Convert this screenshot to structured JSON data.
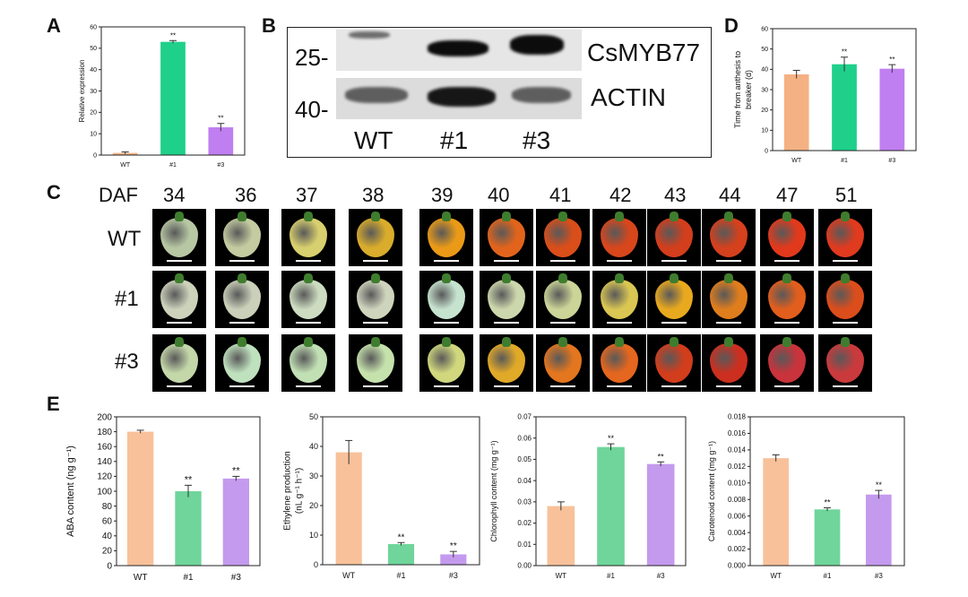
{
  "panels": {
    "a": "A",
    "b": "B",
    "c": "C",
    "d": "D",
    "e": "E"
  },
  "charts": {
    "A": {
      "type": "bar",
      "categories": [
        "WT",
        "#1",
        "#3"
      ],
      "values": [
        1.0,
        53.0,
        13.0
      ],
      "errors": [
        0.5,
        0.6,
        1.8
      ],
      "stars": [
        "",
        "**",
        "**"
      ],
      "colors": [
        "#f4b183",
        "#1fd08a",
        "#c07ff0"
      ],
      "ylabel": "Relative expression",
      "ylim": [
        0,
        60
      ],
      "yticks": [
        "0",
        "10",
        "20",
        "30",
        "40",
        "50",
        "60"
      ]
    },
    "D": {
      "type": "bar",
      "categories": [
        "WT",
        "#1",
        "#3"
      ],
      "values": [
        37.5,
        42.5,
        40.3
      ],
      "errors": [
        2.0,
        3.5,
        2.0
      ],
      "stars": [
        "",
        "**",
        "**"
      ],
      "colors": [
        "#f4b183",
        "#1fd08a",
        "#c07ff0"
      ],
      "ylabel_lines": [
        "Time from anthesis to",
        "breaker (d)"
      ],
      "ylim": [
        0,
        60
      ],
      "yticks": [
        "0",
        "10",
        "20",
        "30",
        "40",
        "50",
        "60"
      ]
    },
    "E1": {
      "type": "bar",
      "categories": [
        "WT",
        "#1",
        "#3"
      ],
      "values": [
        180,
        100,
        117
      ],
      "errors": [
        2,
        8,
        3
      ],
      "stars": [
        "",
        "**",
        "**"
      ],
      "colors": [
        "#f8c19a",
        "#6fd59b",
        "#c49aee"
      ],
      "ylabel": "ABA content (ng g⁻¹)",
      "ylim": [
        0,
        200
      ],
      "yticks": [
        "0",
        "20",
        "40",
        "60",
        "80",
        "100",
        "120",
        "140",
        "160",
        "180",
        "200"
      ]
    },
    "E2": {
      "type": "bar",
      "categories": [
        "WT",
        "#1",
        "#3"
      ],
      "values": [
        38,
        7,
        3.5
      ],
      "errors": [
        4,
        0.5,
        1
      ],
      "stars": [
        "",
        "**",
        "**"
      ],
      "colors": [
        "#f8c19a",
        "#6fd59b",
        "#c49aee"
      ],
      "ylabel_lines": [
        "Ethylene production",
        "(nL g⁻¹ h⁻¹)"
      ],
      "ylim": [
        0,
        50
      ],
      "yticks": [
        "0",
        "10",
        "20",
        "30",
        "40",
        "50"
      ]
    },
    "E3": {
      "type": "bar",
      "categories": [
        "WT",
        "#1",
        "#3"
      ],
      "values": [
        0.028,
        0.0558,
        0.0478
      ],
      "errors": [
        0.002,
        0.0015,
        0.001
      ],
      "stars": [
        "",
        "**",
        "**"
      ],
      "colors": [
        "#f8c19a",
        "#6fd59b",
        "#c49aee"
      ],
      "ylabel": "Chlorophyll content (mg g⁻¹)",
      "ylim": [
        0,
        0.07
      ],
      "yticks": [
        "0.00",
        "0.01",
        "0.02",
        "0.03",
        "0.04",
        "0.05",
        "0.06",
        "0.07"
      ]
    },
    "E4": {
      "type": "bar",
      "categories": [
        "WT",
        "#1",
        "#3"
      ],
      "values": [
        0.013,
        0.0068,
        0.0086
      ],
      "errors": [
        0.0004,
        0.0002,
        0.0005
      ],
      "stars": [
        "",
        "**",
        "**"
      ],
      "colors": [
        "#f8c19a",
        "#6fd59b",
        "#c49aee"
      ],
      "ylabel": "Carotenoid content (mg g⁻¹)",
      "ylim": [
        0,
        0.018
      ],
      "yticks": [
        "0.000",
        "0.002",
        "0.004",
        "0.006",
        "0.008",
        "0.010",
        "0.012",
        "0.014",
        "0.016",
        "0.018"
      ]
    }
  },
  "blot": {
    "markers": [
      "25-",
      "40-"
    ],
    "proteins": [
      "CsMYB77",
      "ACTIN"
    ],
    "lanes": [
      "WT",
      "#1",
      "#3"
    ]
  },
  "fruit_panel": {
    "daf_label": "DAF",
    "days": [
      "34",
      "36",
      "37",
      "38",
      "39",
      "40",
      "41",
      "42",
      "43",
      "44",
      "47",
      "51"
    ],
    "rows": [
      {
        "label": "WT",
        "colors": [
          "#b7c7a3",
          "#c4cba0",
          "#d8cf6e",
          "#d9ac2c",
          "#ea9a17",
          "#e2641c",
          "#da4e1a",
          "#d8461c",
          "#d33e1c",
          "#d5401d",
          "#e2391c",
          "#e03a1f"
        ]
      },
      {
        "label": "#1",
        "colors": [
          "#cdd2bb",
          "#cbd0ba",
          "#cddcc0",
          "#cfd4bd",
          "#c6e3cf",
          "#cdd7ad",
          "#ccd597",
          "#d9c653",
          "#e9a91f",
          "#e07d1d",
          "#e25e1d",
          "#dc4d1c"
        ]
      },
      {
        "label": "#3",
        "colors": [
          "#c4d7a9",
          "#bfe1be",
          "#c1e0b4",
          "#c5e1ac",
          "#d0d77d",
          "#e1a928",
          "#e3761e",
          "#e5661e",
          "#d23d1c",
          "#cc2f1f",
          "#c9333b",
          "#ca3a3c"
        ]
      }
    ]
  }
}
